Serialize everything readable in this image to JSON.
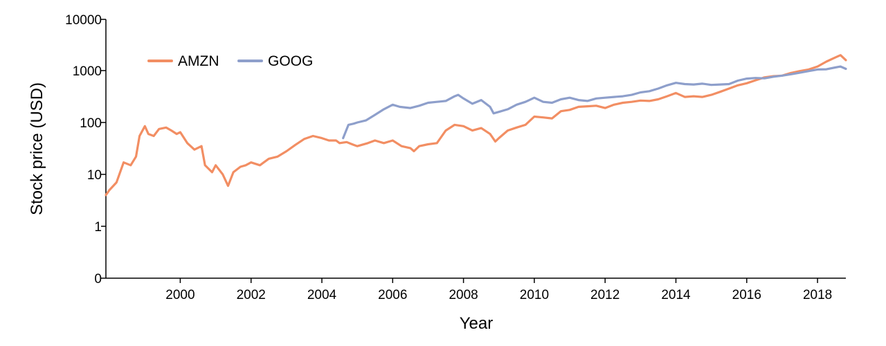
{
  "chart_data": {
    "type": "line",
    "xlabel": "Year",
    "ylabel": "Stock price (USD)",
    "xlim": [
      1997.9,
      2018.8
    ],
    "ylim": [
      0,
      10000
    ],
    "y_scale": "log (symlog: 0 then 1–10000)",
    "x_ticks": [
      "2000",
      "2002",
      "2004",
      "2006",
      "2008",
      "2010",
      "2012",
      "2014",
      "2016",
      "2018"
    ],
    "y_ticks": [
      "0",
      "1",
      "10",
      "100",
      "1000",
      "10000"
    ],
    "grid": false,
    "legend_position": "top-left",
    "series": [
      {
        "name": "AMZN",
        "color": "#f28e63",
        "x": [
          1997.9,
          1998.0,
          1998.2,
          1998.4,
          1998.6,
          1998.75,
          1998.85,
          1999.0,
          1999.1,
          1999.25,
          1999.4,
          1999.6,
          1999.75,
          1999.9,
          2000.0,
          2000.2,
          2000.4,
          2000.6,
          2000.7,
          2000.9,
          2001.0,
          2001.2,
          2001.35,
          2001.5,
          2001.7,
          2001.85,
          2002.0,
          2002.25,
          2002.5,
          2002.75,
          2003.0,
          2003.25,
          2003.5,
          2003.75,
          2004.0,
          2004.2,
          2004.4,
          2004.5,
          2004.7,
          2004.9,
          2005.0,
          2005.3,
          2005.5,
          2005.75,
          2006.0,
          2006.25,
          2006.5,
          2006.6,
          2006.75,
          2007.0,
          2007.25,
          2007.5,
          2007.75,
          2008.0,
          2008.25,
          2008.5,
          2008.75,
          2008.9,
          2009.0,
          2009.25,
          2009.5,
          2009.75,
          2010.0,
          2010.25,
          2010.5,
          2010.75,
          2011.0,
          2011.25,
          2011.5,
          2011.75,
          2012.0,
          2012.25,
          2012.5,
          2012.75,
          2013.0,
          2013.25,
          2013.5,
          2013.75,
          2014.0,
          2014.25,
          2014.5,
          2014.75,
          2015.0,
          2015.25,
          2015.5,
          2015.75,
          2016.0,
          2016.25,
          2016.5,
          2016.75,
          2017.0,
          2017.25,
          2017.5,
          2017.75,
          2018.0,
          2018.25,
          2018.5,
          2018.65,
          2018.8
        ],
        "values": [
          4,
          5,
          7,
          17,
          15,
          22,
          55,
          85,
          60,
          55,
          75,
          80,
          70,
          60,
          65,
          40,
          30,
          35,
          15,
          11,
          15,
          10,
          6,
          11,
          14,
          15,
          17,
          15,
          20,
          22,
          28,
          37,
          48,
          55,
          50,
          45,
          45,
          40,
          42,
          37,
          35,
          40,
          45,
          40,
          45,
          35,
          32,
          28,
          35,
          38,
          40,
          70,
          90,
          85,
          70,
          78,
          60,
          43,
          50,
          70,
          80,
          90,
          130,
          125,
          120,
          165,
          175,
          200,
          205,
          210,
          190,
          220,
          240,
          250,
          265,
          260,
          280,
          320,
          370,
          310,
          320,
          310,
          340,
          390,
          450,
          520,
          570,
          650,
          740,
          780,
          800,
          900,
          980,
          1050,
          1200,
          1500,
          1800,
          2000,
          1600
        ]
      },
      {
        "name": "GOOG",
        "color": "#8e9fcb",
        "x": [
          2004.6,
          2004.75,
          2004.9,
          2005.0,
          2005.25,
          2005.5,
          2005.75,
          2006.0,
          2006.2,
          2006.5,
          2006.75,
          2007.0,
          2007.25,
          2007.5,
          2007.75,
          2007.85,
          2008.0,
          2008.25,
          2008.5,
          2008.75,
          2008.85,
          2009.0,
          2009.25,
          2009.5,
          2009.75,
          2010.0,
          2010.25,
          2010.5,
          2010.75,
          2011.0,
          2011.25,
          2011.5,
          2011.75,
          2012.0,
          2012.25,
          2012.5,
          2012.75,
          2013.0,
          2013.25,
          2013.5,
          2013.75,
          2014.0,
          2014.25,
          2014.5,
          2014.75,
          2015.0,
          2015.25,
          2015.5,
          2015.75,
          2016.0,
          2016.25,
          2016.5,
          2016.75,
          2017.0,
          2017.25,
          2017.5,
          2017.75,
          2018.0,
          2018.25,
          2018.5,
          2018.65,
          2018.8
        ],
        "values": [
          50,
          90,
          95,
          100,
          110,
          140,
          180,
          220,
          200,
          190,
          210,
          240,
          250,
          260,
          320,
          340,
          290,
          230,
          270,
          200,
          150,
          160,
          180,
          220,
          250,
          300,
          250,
          240,
          280,
          300,
          270,
          260,
          290,
          300,
          310,
          320,
          340,
          380,
          400,
          450,
          520,
          580,
          550,
          540,
          560,
          530,
          540,
          550,
          640,
          700,
          720,
          710,
          760,
          800,
          850,
          910,
          980,
          1050,
          1060,
          1150,
          1200,
          1080
        ]
      }
    ]
  }
}
